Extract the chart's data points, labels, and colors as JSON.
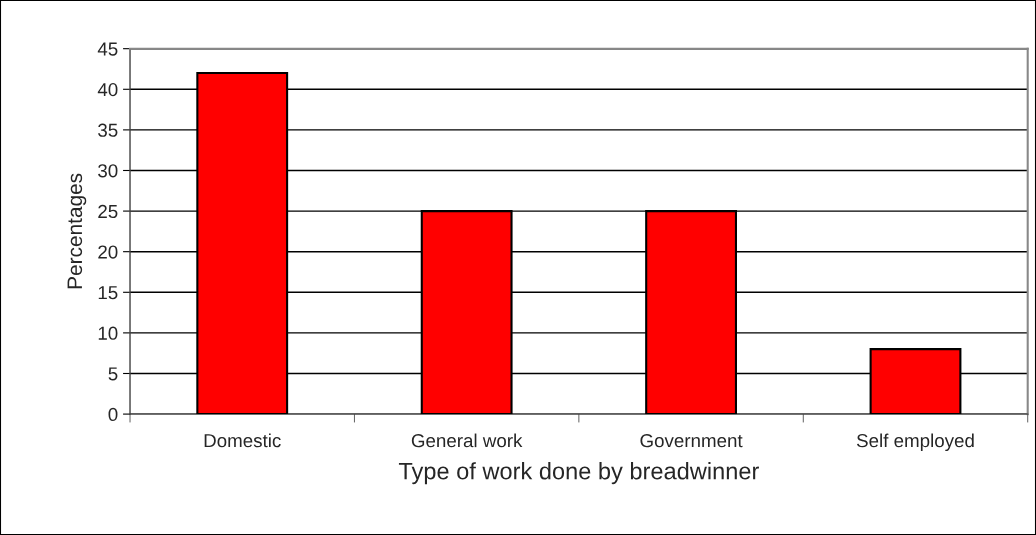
{
  "chart_data": {
    "type": "bar",
    "xlabel": "Type of work done by breadwinner",
    "ylabel": "Percentages",
    "categories": [
      "Domestic",
      "General work",
      "Government",
      "Self employed"
    ],
    "values": [
      42,
      25,
      25,
      8
    ],
    "color": "#ff0000",
    "ylim": [
      0,
      45
    ],
    "yticks": [
      0,
      5,
      10,
      15,
      20,
      25,
      30,
      35,
      40,
      45
    ],
    "grid": "y",
    "legend": false
  }
}
